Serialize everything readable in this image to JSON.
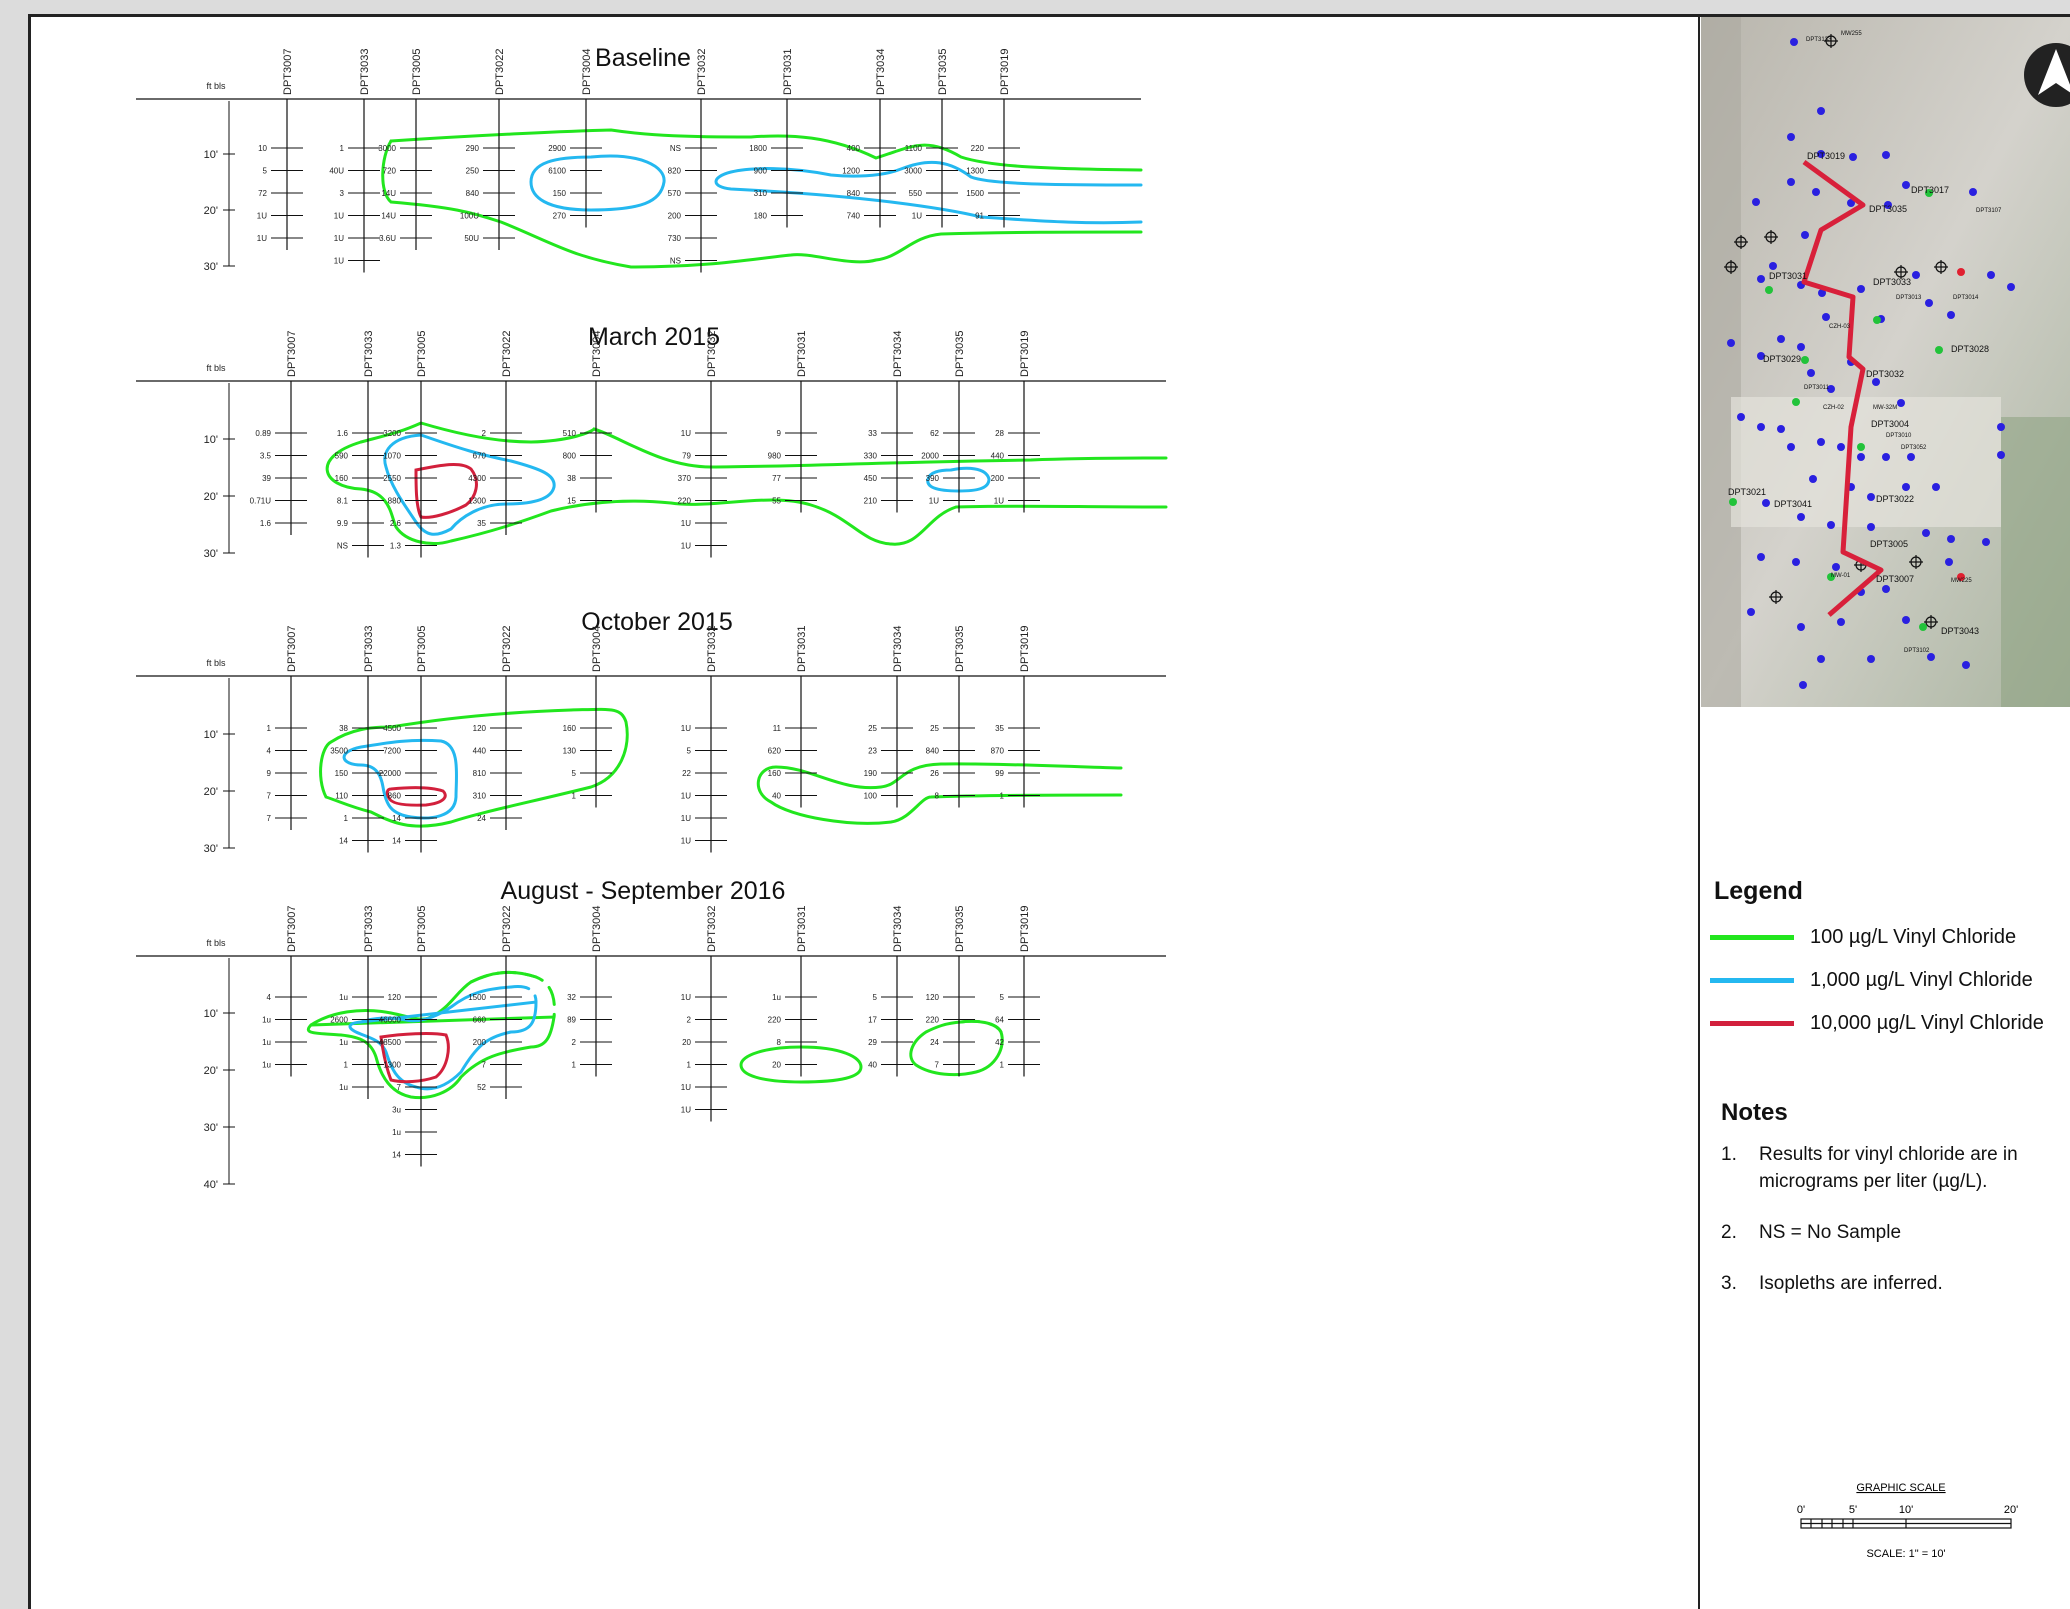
{
  "sections": [
    {
      "title": "Baseline",
      "depth_unit": "ft bls",
      "depth_ticks": [
        "10'",
        "20'",
        "30'"
      ],
      "wells": [
        {
          "name": "DPT3007",
          "values": [
            "10",
            "5",
            "72",
            "1U",
            "1U"
          ]
        },
        {
          "name": "DPT3033",
          "values": [
            "1",
            "40U",
            "3",
            "1U",
            "1U",
            "1U"
          ]
        },
        {
          "name": "DPT3005",
          "values": [
            "3000",
            "720",
            "14U",
            "14U",
            "3.6U"
          ]
        },
        {
          "name": "DPT3022",
          "values": [
            "290",
            "250",
            "840",
            "100U",
            "50U"
          ]
        },
        {
          "name": "DPT3004",
          "values": [
            "2900",
            "6100",
            "150",
            "270"
          ]
        },
        {
          "name": "DPT3032",
          "values": [
            "NS",
            "820",
            "570",
            "200",
            "730",
            "NS"
          ]
        },
        {
          "name": "DPT3031",
          "values": [
            "1800",
            "900",
            "310",
            "180"
          ]
        },
        {
          "name": "DPT3034",
          "values": [
            "400",
            "1200",
            "840",
            "740"
          ]
        },
        {
          "name": "DPT3035",
          "values": [
            "1100",
            "3000",
            "550",
            "1U"
          ]
        },
        {
          "name": "DPT3019",
          "values": [
            "220",
            "1300",
            "1500",
            "91"
          ]
        }
      ]
    },
    {
      "title": "March 2015",
      "depth_unit": "ft bls",
      "depth_ticks": [
        "10'",
        "20'",
        "30'"
      ],
      "wells": [
        {
          "name": "DPT3007",
          "values": [
            "0.89",
            "3.5",
            "39",
            "0.71U",
            "1.6"
          ]
        },
        {
          "name": "DPT3033",
          "values": [
            "1.6",
            "590",
            "160",
            "8.1",
            "9.9",
            "NS"
          ]
        },
        {
          "name": "DPT3005",
          "values": [
            "3200",
            "1070",
            "2550",
            "880",
            "2.6",
            "1.3"
          ]
        },
        {
          "name": "DPT3022",
          "values": [
            "2",
            "670",
            "4300",
            "1300",
            "35"
          ]
        },
        {
          "name": "DPT3004",
          "values": [
            "510",
            "800",
            "38",
            "15"
          ]
        },
        {
          "name": "DPT3032",
          "values": [
            "1U",
            "79",
            "370",
            "220",
            "1U",
            "1U"
          ]
        },
        {
          "name": "DPT3031",
          "values": [
            "9",
            "980",
            "77",
            "55"
          ]
        },
        {
          "name": "DPT3034",
          "values": [
            "33",
            "330",
            "450",
            "210"
          ]
        },
        {
          "name": "DPT3035",
          "values": [
            "62",
            "2000",
            "390",
            "1U"
          ]
        },
        {
          "name": "DPT3019",
          "values": [
            "28",
            "440",
            "200",
            "1U"
          ]
        }
      ]
    },
    {
      "title": "October 2015",
      "depth_unit": "ft bls",
      "depth_ticks": [
        "10'",
        "20'",
        "30'"
      ],
      "wells": [
        {
          "name": "DPT3007",
          "values": [
            "1",
            "4",
            "9",
            "7",
            "7"
          ]
        },
        {
          "name": "DPT3033",
          "values": [
            "38",
            "3500",
            "150",
            "110",
            "1",
            "14"
          ]
        },
        {
          "name": "DPT3005",
          "values": [
            "4500",
            "7200",
            "22000",
            "860",
            "14",
            "14"
          ]
        },
        {
          "name": "DPT3022",
          "values": [
            "120",
            "440",
            "810",
            "310",
            "24"
          ]
        },
        {
          "name": "DPT3004",
          "values": [
            "160",
            "130",
            "5",
            "1"
          ]
        },
        {
          "name": "DPT3032",
          "values": [
            "1U",
            "5",
            "22",
            "1U",
            "1U",
            "1U"
          ]
        },
        {
          "name": "DPT3031",
          "values": [
            "11",
            "620",
            "160",
            "40"
          ]
        },
        {
          "name": "DPT3034",
          "values": [
            "25",
            "23",
            "190",
            "100"
          ]
        },
        {
          "name": "DPT3035",
          "values": [
            "25",
            "840",
            "26",
            "8"
          ]
        },
        {
          "name": "DPT3019",
          "values": [
            "35",
            "870",
            "99",
            "1"
          ]
        }
      ]
    },
    {
      "title": "August - September 2016",
      "depth_unit": "ft bls",
      "depth_ticks": [
        "10'",
        "20'",
        "30'",
        "40'"
      ],
      "wells": [
        {
          "name": "DPT3007",
          "values": [
            "4",
            "1u",
            "1u",
            "1u"
          ]
        },
        {
          "name": "DPT3033",
          "values": [
            "1u",
            "2600",
            "1u",
            "1",
            "1u"
          ]
        },
        {
          "name": "DPT3005",
          "values": [
            "120",
            "46600",
            "48500",
            "1300",
            "7",
            "3u",
            "1u",
            "14"
          ]
        },
        {
          "name": "DPT3022",
          "values": [
            "1500",
            "660",
            "200",
            "7",
            "52"
          ]
        },
        {
          "name": "DPT3004",
          "values": [
            "32",
            "89",
            "2",
            "1"
          ]
        },
        {
          "name": "DPT3032",
          "values": [
            "1U",
            "2",
            "20",
            "1",
            "1U",
            "1U"
          ]
        },
        {
          "name": "DPT3031",
          "values": [
            "1u",
            "220",
            "8",
            "20"
          ]
        },
        {
          "name": "DPT3034",
          "values": [
            "5",
            "17",
            "29",
            "40"
          ]
        },
        {
          "name": "DPT3035",
          "values": [
            "120",
            "220",
            "24",
            "7"
          ]
        },
        {
          "name": "DPT3019",
          "values": [
            "5",
            "64",
            "42",
            "1"
          ]
        }
      ]
    }
  ],
  "map": {
    "labels": [
      "DPT3133",
      "MW255",
      "DPT3019",
      "DPT3035",
      "DPT3017",
      "DPT3107",
      "DPT3031",
      "DPT3033",
      "DPT3013",
      "DPT3014",
      "DPT3029",
      "DPT3032",
      "DPT3028",
      "DPT3011",
      "DPT3004",
      "DPT3010",
      "DPT3052",
      "DPT3022",
      "DPT3021",
      "DPT3041",
      "DPT3005",
      "DPT3007",
      "DPT3043",
      "DPT3102",
      "CZH-03",
      "CZH-02",
      "MW-32M",
      "MW225",
      "MW-01"
    ],
    "colors": {
      "well_blue": "#2a20e0",
      "well_green": "#22c33a",
      "well_red": "#e02030",
      "transect": "#d8203a"
    }
  },
  "legend": {
    "title": "Legend",
    "items": [
      {
        "label": "100 µg/L Vinyl Chloride",
        "color": "#22e61e"
      },
      {
        "label": "1,000 µg/L Vinyl Chloride",
        "color": "#24b8f0"
      },
      {
        "label": "10,000 µg/L Vinyl Chloride",
        "color": "#d2203c"
      }
    ]
  },
  "notes": {
    "title": "Notes",
    "items": [
      {
        "num": "1.",
        "text": "Results for vinyl chloride are in micrograms per liter (µg/L)."
      },
      {
        "num": "2.",
        "text": "NS = No Sample"
      },
      {
        "num": "3.",
        "text": "Isopleths are inferred."
      }
    ]
  },
  "graphic_scale": {
    "title": "GRAPHIC SCALE",
    "ticks": [
      "0'",
      "5'",
      "10'",
      "20'"
    ],
    "caption": "SCALE: 1\" = 10'"
  }
}
